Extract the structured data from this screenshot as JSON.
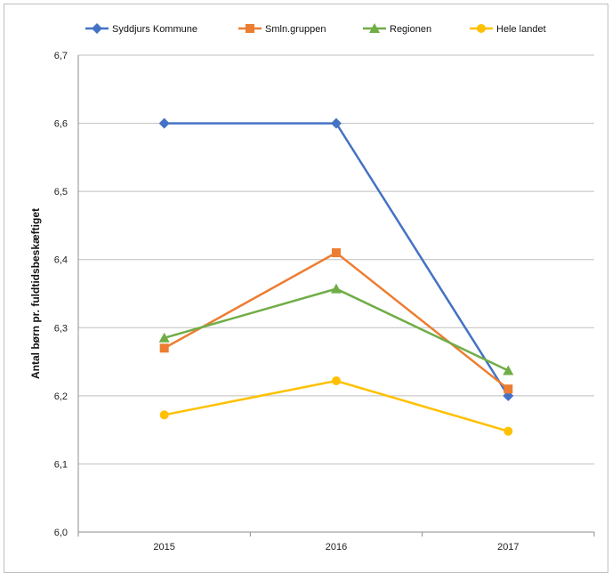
{
  "chart_data": {
    "type": "line",
    "title": "",
    "xlabel": "",
    "ylabel": "Antal børn pr. fuldtidsbeskæftiget",
    "categories": [
      "2015",
      "2016",
      "2017"
    ],
    "ylim": [
      6.0,
      6.7
    ],
    "yticks": [
      "6,0",
      "6,1",
      "6,2",
      "6,3",
      "6,4",
      "6,5",
      "6,6",
      "6,7"
    ],
    "grid": true,
    "legend_position": "top",
    "series": [
      {
        "name": "Syddjurs Kommune",
        "values": [
          6.6,
          6.6,
          6.2
        ],
        "color": "#4472C4",
        "marker": "diamond"
      },
      {
        "name": "Smln.gruppen",
        "values": [
          6.27,
          6.41,
          6.21
        ],
        "color": "#ED7D31",
        "marker": "square"
      },
      {
        "name": "Regionen",
        "values": [
          6.285,
          6.357,
          6.237
        ],
        "color": "#70AD47",
        "marker": "triangle"
      },
      {
        "name": "Hele landet",
        "values": [
          6.172,
          6.222,
          6.148
        ],
        "color": "#FFC000",
        "marker": "circle"
      }
    ]
  }
}
